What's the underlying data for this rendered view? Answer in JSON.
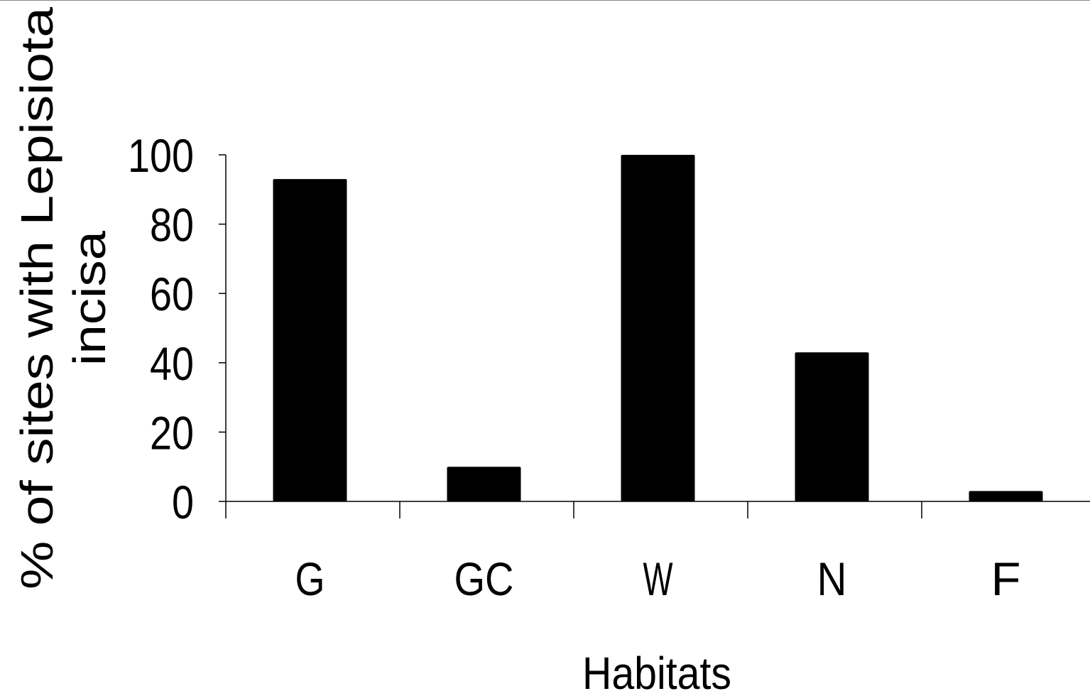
{
  "chart_data": {
    "type": "bar",
    "categories": [
      "G",
      "GC",
      "W",
      "N",
      "F"
    ],
    "values": [
      93,
      10,
      100,
      43,
      3
    ],
    "title": "",
    "xlabel": "Habitats",
    "ylabel_lines": [
      "% of sites with Lepisiota",
      "incisa"
    ],
    "ylim": [
      0,
      100
    ],
    "yticks": [
      "0",
      "20",
      "40",
      "60",
      "80",
      "100"
    ],
    "grid": false,
    "legend": "none",
    "bar_color": "#000000"
  }
}
